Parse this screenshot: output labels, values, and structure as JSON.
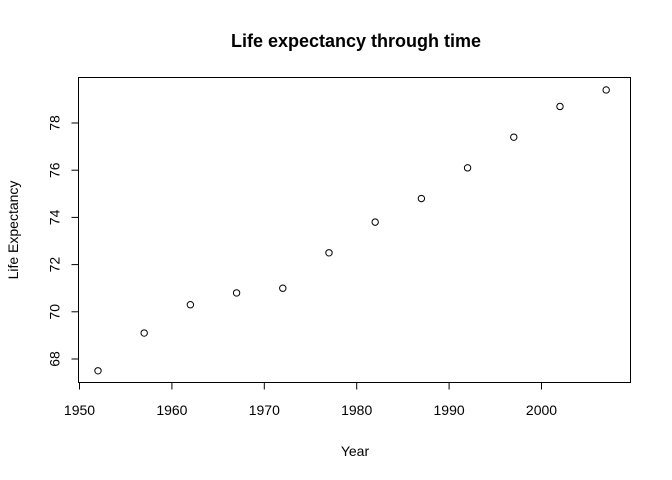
{
  "chart_data": {
    "type": "scatter",
    "title": "Life expectancy through time",
    "xlabel": "Year",
    "ylabel": "Life Expectancy",
    "xlim": [
      1950,
      2010
    ],
    "ylim": [
      67.5,
      79.5
    ],
    "x_ticks": [
      1950,
      1960,
      1970,
      1980,
      1990,
      2000
    ],
    "y_ticks": [
      68,
      70,
      72,
      74,
      76,
      78
    ],
    "grid": false,
    "legend": "none",
    "marker": "open-circle",
    "points": [
      {
        "x": 1952,
        "y": 67.5
      },
      {
        "x": 1957,
        "y": 69.1
      },
      {
        "x": 1962,
        "y": 70.3
      },
      {
        "x": 1967,
        "y": 70.8
      },
      {
        "x": 1972,
        "y": 71.0
      },
      {
        "x": 1977,
        "y": 72.5
      },
      {
        "x": 1982,
        "y": 73.8
      },
      {
        "x": 1987,
        "y": 74.8
      },
      {
        "x": 1992,
        "y": 76.1
      },
      {
        "x": 1997,
        "y": 77.4
      },
      {
        "x": 2002,
        "y": 78.7
      },
      {
        "x": 2007,
        "y": 79.4
      }
    ]
  }
}
